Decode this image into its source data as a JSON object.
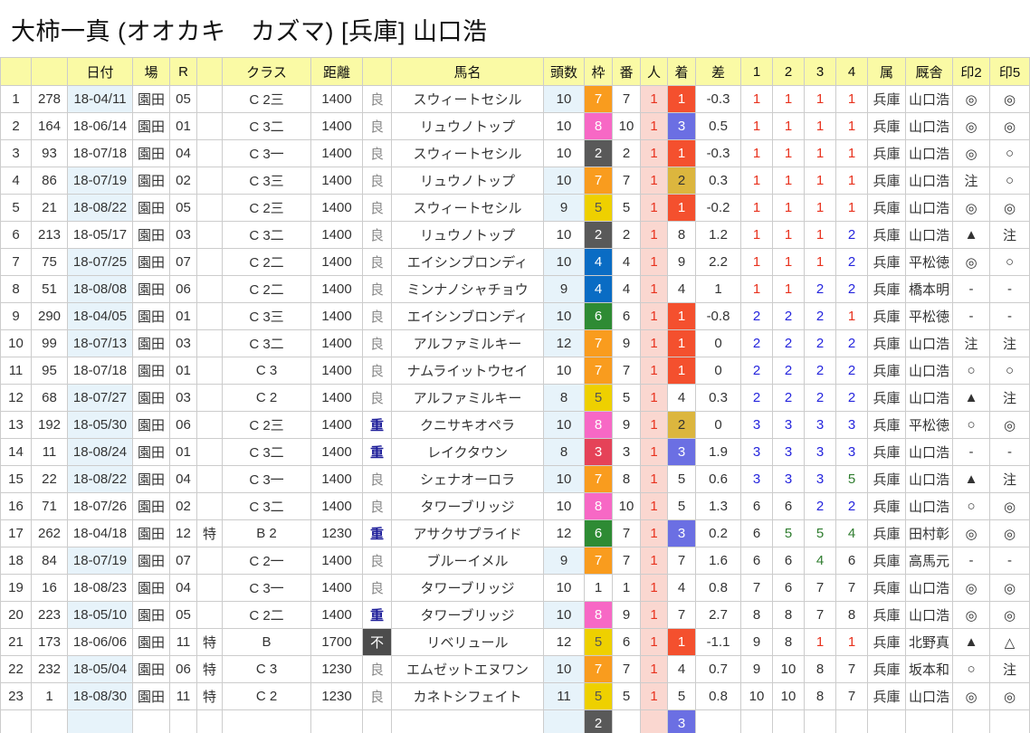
{
  "title": "大柿一真 (オオカキ　カズマ) [兵庫] 山口浩",
  "table": {
    "headers": [
      "",
      "",
      "日付",
      "場",
      "R",
      "",
      "クラス",
      "距離",
      "",
      "馬名",
      "頭数",
      "枠",
      "番",
      "人",
      "着",
      "差",
      "1",
      "2",
      "3",
      "4",
      "属",
      "厩舎",
      "印2",
      "印5"
    ],
    "rows": [
      {
        "no": 1,
        "id": 278,
        "date": "18-04/11",
        "hl": true,
        "venue": "園田",
        "race": "05",
        "toku": "",
        "cls": "C 2三",
        "dist": "1400",
        "track": "良",
        "horse": "スウィートセシル",
        "heads": 10,
        "waku": 7,
        "ban": 7,
        "nin": 1,
        "fin": 1,
        "margin": "-0.3",
        "c": [
          1,
          1,
          1,
          1
        ],
        "pref": "兵庫",
        "stable": "山口浩",
        "m2": "◎",
        "m5": "◎"
      },
      {
        "no": 2,
        "id": 164,
        "date": "18-06/14",
        "hl": false,
        "venue": "園田",
        "race": "01",
        "toku": "",
        "cls": "C 3二",
        "dist": "1400",
        "track": "良",
        "horse": "リュウノトップ",
        "heads": 10,
        "waku": 8,
        "ban": 10,
        "nin": 1,
        "fin": 3,
        "margin": "0.5",
        "c": [
          1,
          1,
          1,
          1
        ],
        "pref": "兵庫",
        "stable": "山口浩",
        "m2": "◎",
        "m5": "◎"
      },
      {
        "no": 3,
        "id": 93,
        "date": "18-07/18",
        "hl": false,
        "venue": "園田",
        "race": "04",
        "toku": "",
        "cls": "C 3一",
        "dist": "1400",
        "track": "良",
        "horse": "スウィートセシル",
        "heads": 10,
        "waku": 2,
        "ban": 2,
        "nin": 1,
        "fin": 1,
        "margin": "-0.3",
        "c": [
          1,
          1,
          1,
          1
        ],
        "pref": "兵庫",
        "stable": "山口浩",
        "m2": "◎",
        "m5": "○"
      },
      {
        "no": 4,
        "id": 86,
        "date": "18-07/19",
        "hl": true,
        "venue": "園田",
        "race": "02",
        "toku": "",
        "cls": "C 3三",
        "dist": "1400",
        "track": "良",
        "horse": "リュウノトップ",
        "heads": 10,
        "waku": 7,
        "ban": 7,
        "nin": 1,
        "fin": 2,
        "margin": "0.3",
        "c": [
          1,
          1,
          1,
          1
        ],
        "pref": "兵庫",
        "stable": "山口浩",
        "m2": "注",
        "m5": "○"
      },
      {
        "no": 5,
        "id": 21,
        "date": "18-08/22",
        "hl": true,
        "venue": "園田",
        "race": "05",
        "toku": "",
        "cls": "C 2三",
        "dist": "1400",
        "track": "良",
        "horse": "スウィートセシル",
        "heads": 9,
        "waku": 5,
        "ban": 5,
        "nin": 1,
        "fin": 1,
        "margin": "-0.2",
        "c": [
          1,
          1,
          1,
          1
        ],
        "pref": "兵庫",
        "stable": "山口浩",
        "m2": "◎",
        "m5": "◎"
      },
      {
        "no": 6,
        "id": 213,
        "date": "18-05/17",
        "hl": false,
        "venue": "園田",
        "race": "03",
        "toku": "",
        "cls": "C 3二",
        "dist": "1400",
        "track": "良",
        "horse": "リュウノトップ",
        "heads": 10,
        "waku": 2,
        "ban": 2,
        "nin": 1,
        "fin": 8,
        "margin": "1.2",
        "c": [
          1,
          1,
          1,
          2
        ],
        "pref": "兵庫",
        "stable": "山口浩",
        "m2": "▲",
        "m5": "注"
      },
      {
        "no": 7,
        "id": 75,
        "date": "18-07/25",
        "hl": true,
        "venue": "園田",
        "race": "07",
        "toku": "",
        "cls": "C 2二",
        "dist": "1400",
        "track": "良",
        "horse": "エイシンブロンディ",
        "heads": 10,
        "waku": 4,
        "ban": 4,
        "nin": 1,
        "fin": 9,
        "margin": "2.2",
        "c": [
          1,
          1,
          1,
          2
        ],
        "pref": "兵庫",
        "stable": "平松徳",
        "m2": "◎",
        "m5": "○"
      },
      {
        "no": 8,
        "id": 51,
        "date": "18-08/08",
        "hl": true,
        "venue": "園田",
        "race": "06",
        "toku": "",
        "cls": "C 2二",
        "dist": "1400",
        "track": "良",
        "horse": "ミンナノシャチョウ",
        "heads": 9,
        "waku": 4,
        "ban": 4,
        "nin": 1,
        "fin": 4,
        "margin": "1",
        "c": [
          1,
          1,
          2,
          2
        ],
        "pref": "兵庫",
        "stable": "橋本明",
        "m2": "-",
        "m5": "-"
      },
      {
        "no": 9,
        "id": 290,
        "date": "18-04/05",
        "hl": true,
        "venue": "園田",
        "race": "01",
        "toku": "",
        "cls": "C 3三",
        "dist": "1400",
        "track": "良",
        "horse": "エイシンブロンディ",
        "heads": 10,
        "waku": 6,
        "ban": 6,
        "nin": 1,
        "fin": 1,
        "margin": "-0.8",
        "c": [
          2,
          2,
          2,
          1
        ],
        "pref": "兵庫",
        "stable": "平松徳",
        "m2": "-",
        "m5": "-"
      },
      {
        "no": 10,
        "id": 99,
        "date": "18-07/13",
        "hl": true,
        "venue": "園田",
        "race": "03",
        "toku": "",
        "cls": "C 3二",
        "dist": "1400",
        "track": "良",
        "horse": "アルファミルキー",
        "heads": 12,
        "waku": 7,
        "ban": 9,
        "nin": 1,
        "fin": 1,
        "margin": "0",
        "c": [
          2,
          2,
          2,
          2
        ],
        "pref": "兵庫",
        "stable": "山口浩",
        "m2": "注",
        "m5": "注"
      },
      {
        "no": 11,
        "id": 95,
        "date": "18-07/18",
        "hl": false,
        "venue": "園田",
        "race": "01",
        "toku": "",
        "cls": "C 3",
        "dist": "1400",
        "track": "良",
        "horse": "ナムライットウセイ",
        "heads": 10,
        "waku": 7,
        "ban": 7,
        "nin": 1,
        "fin": 1,
        "margin": "0",
        "c": [
          2,
          2,
          2,
          2
        ],
        "pref": "兵庫",
        "stable": "山口浩",
        "m2": "○",
        "m5": "○"
      },
      {
        "no": 12,
        "id": 68,
        "date": "18-07/27",
        "hl": true,
        "venue": "園田",
        "race": "03",
        "toku": "",
        "cls": "C 2",
        "dist": "1400",
        "track": "良",
        "horse": "アルファミルキー",
        "heads": 8,
        "waku": 5,
        "ban": 5,
        "nin": 1,
        "fin": 4,
        "margin": "0.3",
        "c": [
          2,
          2,
          2,
          2
        ],
        "pref": "兵庫",
        "stable": "山口浩",
        "m2": "▲",
        "m5": "注"
      },
      {
        "no": 13,
        "id": 192,
        "date": "18-05/30",
        "hl": true,
        "venue": "園田",
        "race": "06",
        "toku": "",
        "cls": "C 2三",
        "dist": "1400",
        "track": "重",
        "horse": "クニサキオペラ",
        "heads": 10,
        "waku": 8,
        "ban": 9,
        "nin": 1,
        "fin": 2,
        "margin": "0",
        "c": [
          3,
          3,
          3,
          3
        ],
        "pref": "兵庫",
        "stable": "平松徳",
        "m2": "○",
        "m5": "◎"
      },
      {
        "no": 14,
        "id": 11,
        "date": "18-08/24",
        "hl": true,
        "venue": "園田",
        "race": "01",
        "toku": "",
        "cls": "C 3二",
        "dist": "1400",
        "track": "重",
        "horse": "レイクタウン",
        "heads": 8,
        "waku": 3,
        "ban": 3,
        "nin": 1,
        "fin": 3,
        "margin": "1.9",
        "c": [
          3,
          3,
          3,
          3
        ],
        "pref": "兵庫",
        "stable": "山口浩",
        "m2": "-",
        "m5": "-"
      },
      {
        "no": 15,
        "id": 22,
        "date": "18-08/22",
        "hl": true,
        "venue": "園田",
        "race": "04",
        "toku": "",
        "cls": "C 3一",
        "dist": "1400",
        "track": "良",
        "horse": "シェナオーロラ",
        "heads": 10,
        "waku": 7,
        "ban": 8,
        "nin": 1,
        "fin": 5,
        "margin": "0.6",
        "c": [
          3,
          3,
          3,
          5
        ],
        "pref": "兵庫",
        "stable": "山口浩",
        "m2": "▲",
        "m5": "注"
      },
      {
        "no": 16,
        "id": 71,
        "date": "18-07/26",
        "hl": false,
        "venue": "園田",
        "race": "02",
        "toku": "",
        "cls": "C 3二",
        "dist": "1400",
        "track": "良",
        "horse": "タワーブリッジ",
        "heads": 10,
        "waku": 8,
        "ban": 10,
        "nin": 1,
        "fin": 5,
        "margin": "1.3",
        "c": [
          6,
          6,
          2,
          2
        ],
        "pref": "兵庫",
        "stable": "山口浩",
        "m2": "○",
        "m5": "◎"
      },
      {
        "no": 17,
        "id": 262,
        "date": "18-04/18",
        "hl": false,
        "venue": "園田",
        "race": "12",
        "toku": "特",
        "cls": "B 2",
        "dist": "1230",
        "track": "重",
        "horse": "アサクサプライド",
        "heads": 12,
        "waku": 6,
        "ban": 7,
        "nin": 1,
        "fin": 3,
        "margin": "0.2",
        "c": [
          6,
          5,
          5,
          4
        ],
        "pref": "兵庫",
        "stable": "田村彰",
        "m2": "◎",
        "m5": "◎"
      },
      {
        "no": 18,
        "id": 84,
        "date": "18-07/19",
        "hl": true,
        "venue": "園田",
        "race": "07",
        "toku": "",
        "cls": "C 2一",
        "dist": "1400",
        "track": "良",
        "horse": "ブルーイメル",
        "heads": 9,
        "waku": 7,
        "ban": 7,
        "nin": 1,
        "fin": 7,
        "margin": "1.6",
        "c": [
          6,
          6,
          4,
          6
        ],
        "pref": "兵庫",
        "stable": "高馬元",
        "m2": "-",
        "m5": "-"
      },
      {
        "no": 19,
        "id": 16,
        "date": "18-08/23",
        "hl": false,
        "venue": "園田",
        "race": "04",
        "toku": "",
        "cls": "C 3一",
        "dist": "1400",
        "track": "良",
        "horse": "タワーブリッジ",
        "heads": 10,
        "waku": 1,
        "ban": 1,
        "nin": 1,
        "fin": 4,
        "margin": "0.8",
        "c": [
          7,
          6,
          7,
          7
        ],
        "pref": "兵庫",
        "stable": "山口浩",
        "m2": "◎",
        "m5": "◎"
      },
      {
        "no": 20,
        "id": 223,
        "date": "18-05/10",
        "hl": true,
        "venue": "園田",
        "race": "05",
        "toku": "",
        "cls": "C 2二",
        "dist": "1400",
        "track": "重",
        "horse": "タワーブリッジ",
        "heads": 10,
        "waku": 8,
        "ban": 9,
        "nin": 1,
        "fin": 7,
        "margin": "2.7",
        "c": [
          8,
          8,
          7,
          8
        ],
        "pref": "兵庫",
        "stable": "山口浩",
        "m2": "◎",
        "m5": "◎"
      },
      {
        "no": 21,
        "id": 173,
        "date": "18-06/06",
        "hl": false,
        "venue": "園田",
        "race": "11",
        "toku": "特",
        "cls": "B",
        "dist": "1700",
        "track": "不",
        "horse": "リベリュール",
        "heads": 12,
        "waku": 5,
        "ban": 6,
        "nin": 1,
        "fin": 1,
        "margin": "-1.1",
        "c": [
          9,
          8,
          1,
          1
        ],
        "pref": "兵庫",
        "stable": "北野真",
        "m2": "▲",
        "m5": "△"
      },
      {
        "no": 22,
        "id": 232,
        "date": "18-05/04",
        "hl": true,
        "venue": "園田",
        "race": "06",
        "toku": "特",
        "cls": "C 3",
        "dist": "1230",
        "track": "良",
        "horse": "エムゼットエヌワン",
        "heads": 10,
        "waku": 7,
        "ban": 7,
        "nin": 1,
        "fin": 4,
        "margin": "0.7",
        "c": [
          9,
          10,
          8,
          7
        ],
        "pref": "兵庫",
        "stable": "坂本和",
        "m2": "○",
        "m5": "注"
      },
      {
        "no": 23,
        "id": 1,
        "date": "18-08/30",
        "hl": true,
        "venue": "園田",
        "race": "11",
        "toku": "特",
        "cls": "C 2",
        "dist": "1230",
        "track": "良",
        "horse": "カネトシフェイト",
        "heads": 11,
        "waku": 5,
        "ban": 5,
        "nin": 1,
        "fin": 5,
        "margin": "0.8",
        "c": [
          10,
          10,
          8,
          7
        ],
        "pref": "兵庫",
        "stable": "山口浩",
        "m2": "◎",
        "m5": "◎"
      },
      {
        "no": "",
        "id": "",
        "date": "",
        "hl": true,
        "venue": "",
        "race": "",
        "toku": "",
        "cls": "",
        "dist": "",
        "track": "",
        "horse": "",
        "heads": "",
        "waku": 2,
        "ban": "",
        "nin": "",
        "fin": 3,
        "margin": "",
        "c": [
          "",
          "",
          "",
          ""
        ],
        "pref": "",
        "stable": "",
        "m2": "",
        "m5": ""
      }
    ]
  },
  "colors": {
    "header_bg": "#fafaa5",
    "highlight_bg": "#e7f3fa",
    "popularity_bg": "#fad7d0",
    "popularity_text": "#e8321e",
    "grid_border": "#cccccc",
    "bracket": {
      "1": {
        "bg": "#ffffff",
        "fg": "#333333"
      },
      "2": {
        "bg": "#595959",
        "fg": "#ffffff"
      },
      "3": {
        "bg": "#e54258",
        "fg": "#ffffff"
      },
      "4": {
        "bg": "#0a6cc4",
        "fg": "#ffffff"
      },
      "5": {
        "bg": "#eed000",
        "fg": "#555555"
      },
      "6": {
        "bg": "#2e8b34",
        "fg": "#ffffff"
      },
      "7": {
        "bg": "#f99c1e",
        "fg": "#ffffff"
      },
      "8": {
        "bg": "#f768c5",
        "fg": "#ffffff"
      }
    },
    "finish": {
      "1": {
        "bg": "#f4502e",
        "fg": "#ffffff"
      },
      "2": {
        "bg": "#dcb63e",
        "fg": "#333333"
      },
      "3": {
        "bg": "#6b6fe3",
        "fg": "#ffffff"
      }
    },
    "corner": {
      "pos1": "#e8321e",
      "pos2_3": "#2525dd",
      "pos4_5": "#2f7d2f",
      "other": "#333333"
    },
    "track": {
      "良": {
        "fg": "#888888",
        "bg": "",
        "bold": false
      },
      "重": {
        "fg": "#1c1c99",
        "bg": "",
        "bold": true
      },
      "不": {
        "fg": "#ffffff",
        "bg": "#4c4c4c",
        "bold": false
      }
    }
  }
}
